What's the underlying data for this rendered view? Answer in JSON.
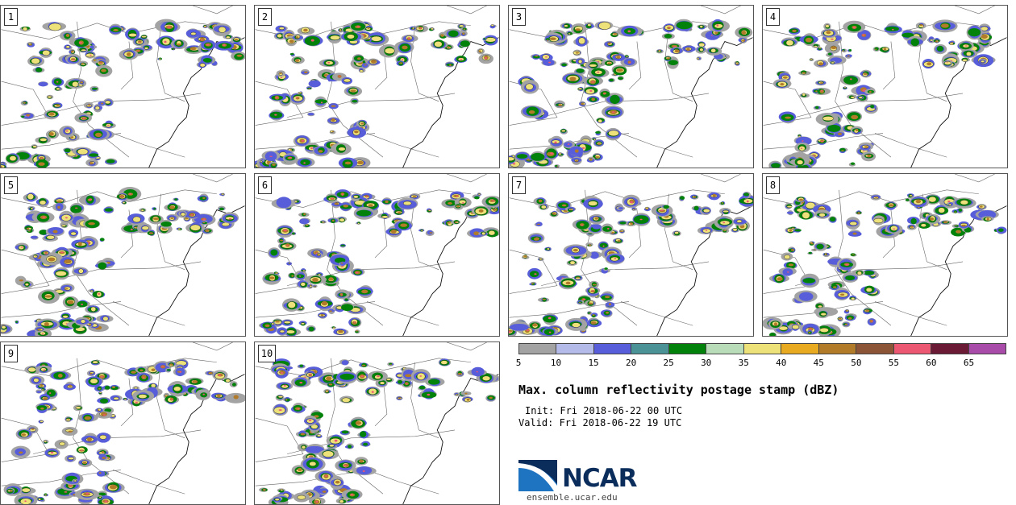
{
  "panels": [
    "1",
    "2",
    "3",
    "4",
    "5",
    "6",
    "7",
    "8",
    "9",
    "10"
  ],
  "colorbar": {
    "ticks": [
      "5",
      "10",
      "15",
      "20",
      "25",
      "30",
      "35",
      "40",
      "45",
      "50",
      "55",
      "60",
      "65"
    ],
    "colors": [
      "#a3a3a3",
      "#b4bbe9",
      "#585ed9",
      "#4b9296",
      "#02820a",
      "#b9dcb9",
      "#ede27a",
      "#e8aa21",
      "#b27b29",
      "#8d5537",
      "#ec5772",
      "#6b1a36",
      "#a94ba8"
    ]
  },
  "title": "Max. column reflectivity postage stamp (dBZ)",
  "init": "Init: Fri 2018-06-22 00 UTC",
  "valid": "Valid: Fri 2018-06-22 19 UTC",
  "logo": {
    "text": "NCAR",
    "colors": [
      "#0a2d5c",
      "#1f74c2"
    ]
  },
  "website": "ensemble.ucar.edu"
}
